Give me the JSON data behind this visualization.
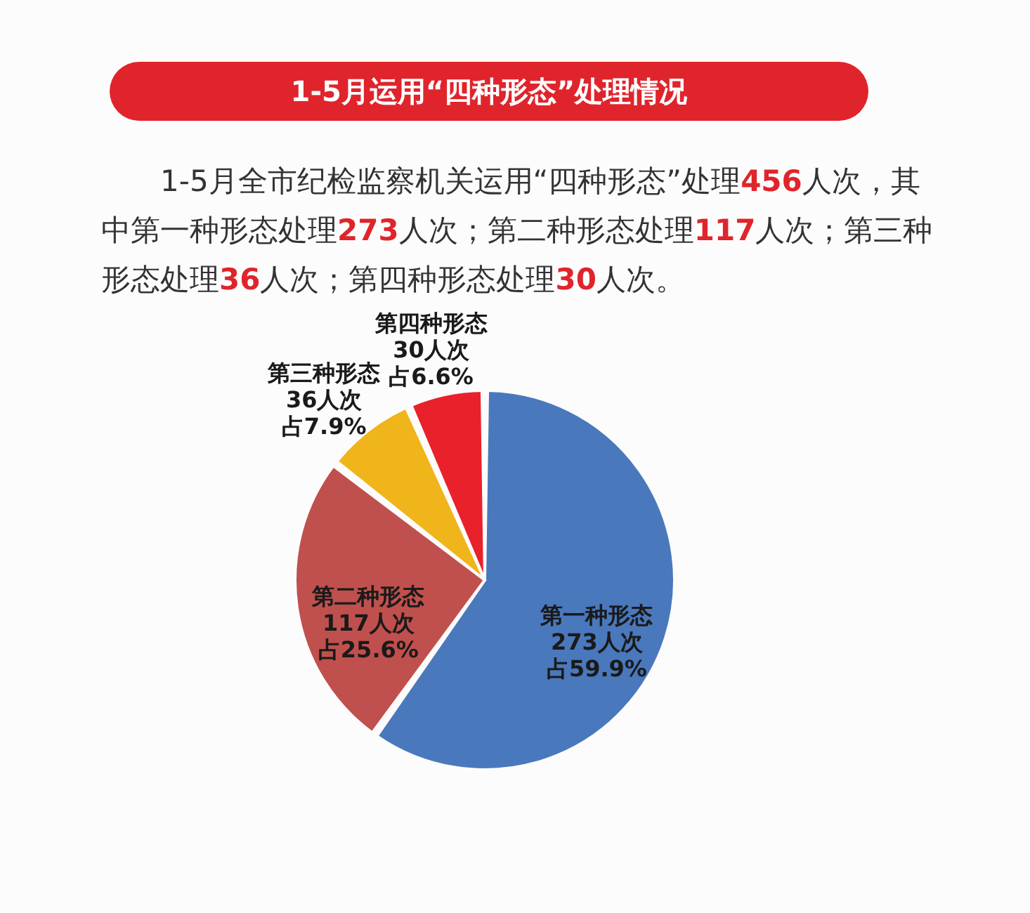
{
  "chart_data": {
    "type": "pie",
    "title": "1-5月运用“四种形态”处理情况",
    "annotations": [
      "1-5月全市纪检监察机关运用“四种形态”处理456人次，其中第一种形态处理273人次；第二种形态处理117人次；第三种形态处理36人次；第四种形态处理30人次。"
    ],
    "categories": [
      "第一种形态",
      "第二种形态",
      "第三种形态",
      "第四种形态"
    ],
    "values": [
      273,
      117,
      36,
      30
    ],
    "value_labels": [
      "273人次占59.9%",
      "117人次占25.6%",
      "36人次占7.9%",
      "30人次占6.6%"
    ],
    "colors": [
      "#4a78bd",
      "#c0504d",
      "#f0b51a",
      "#e8212b"
    ]
  }
}
